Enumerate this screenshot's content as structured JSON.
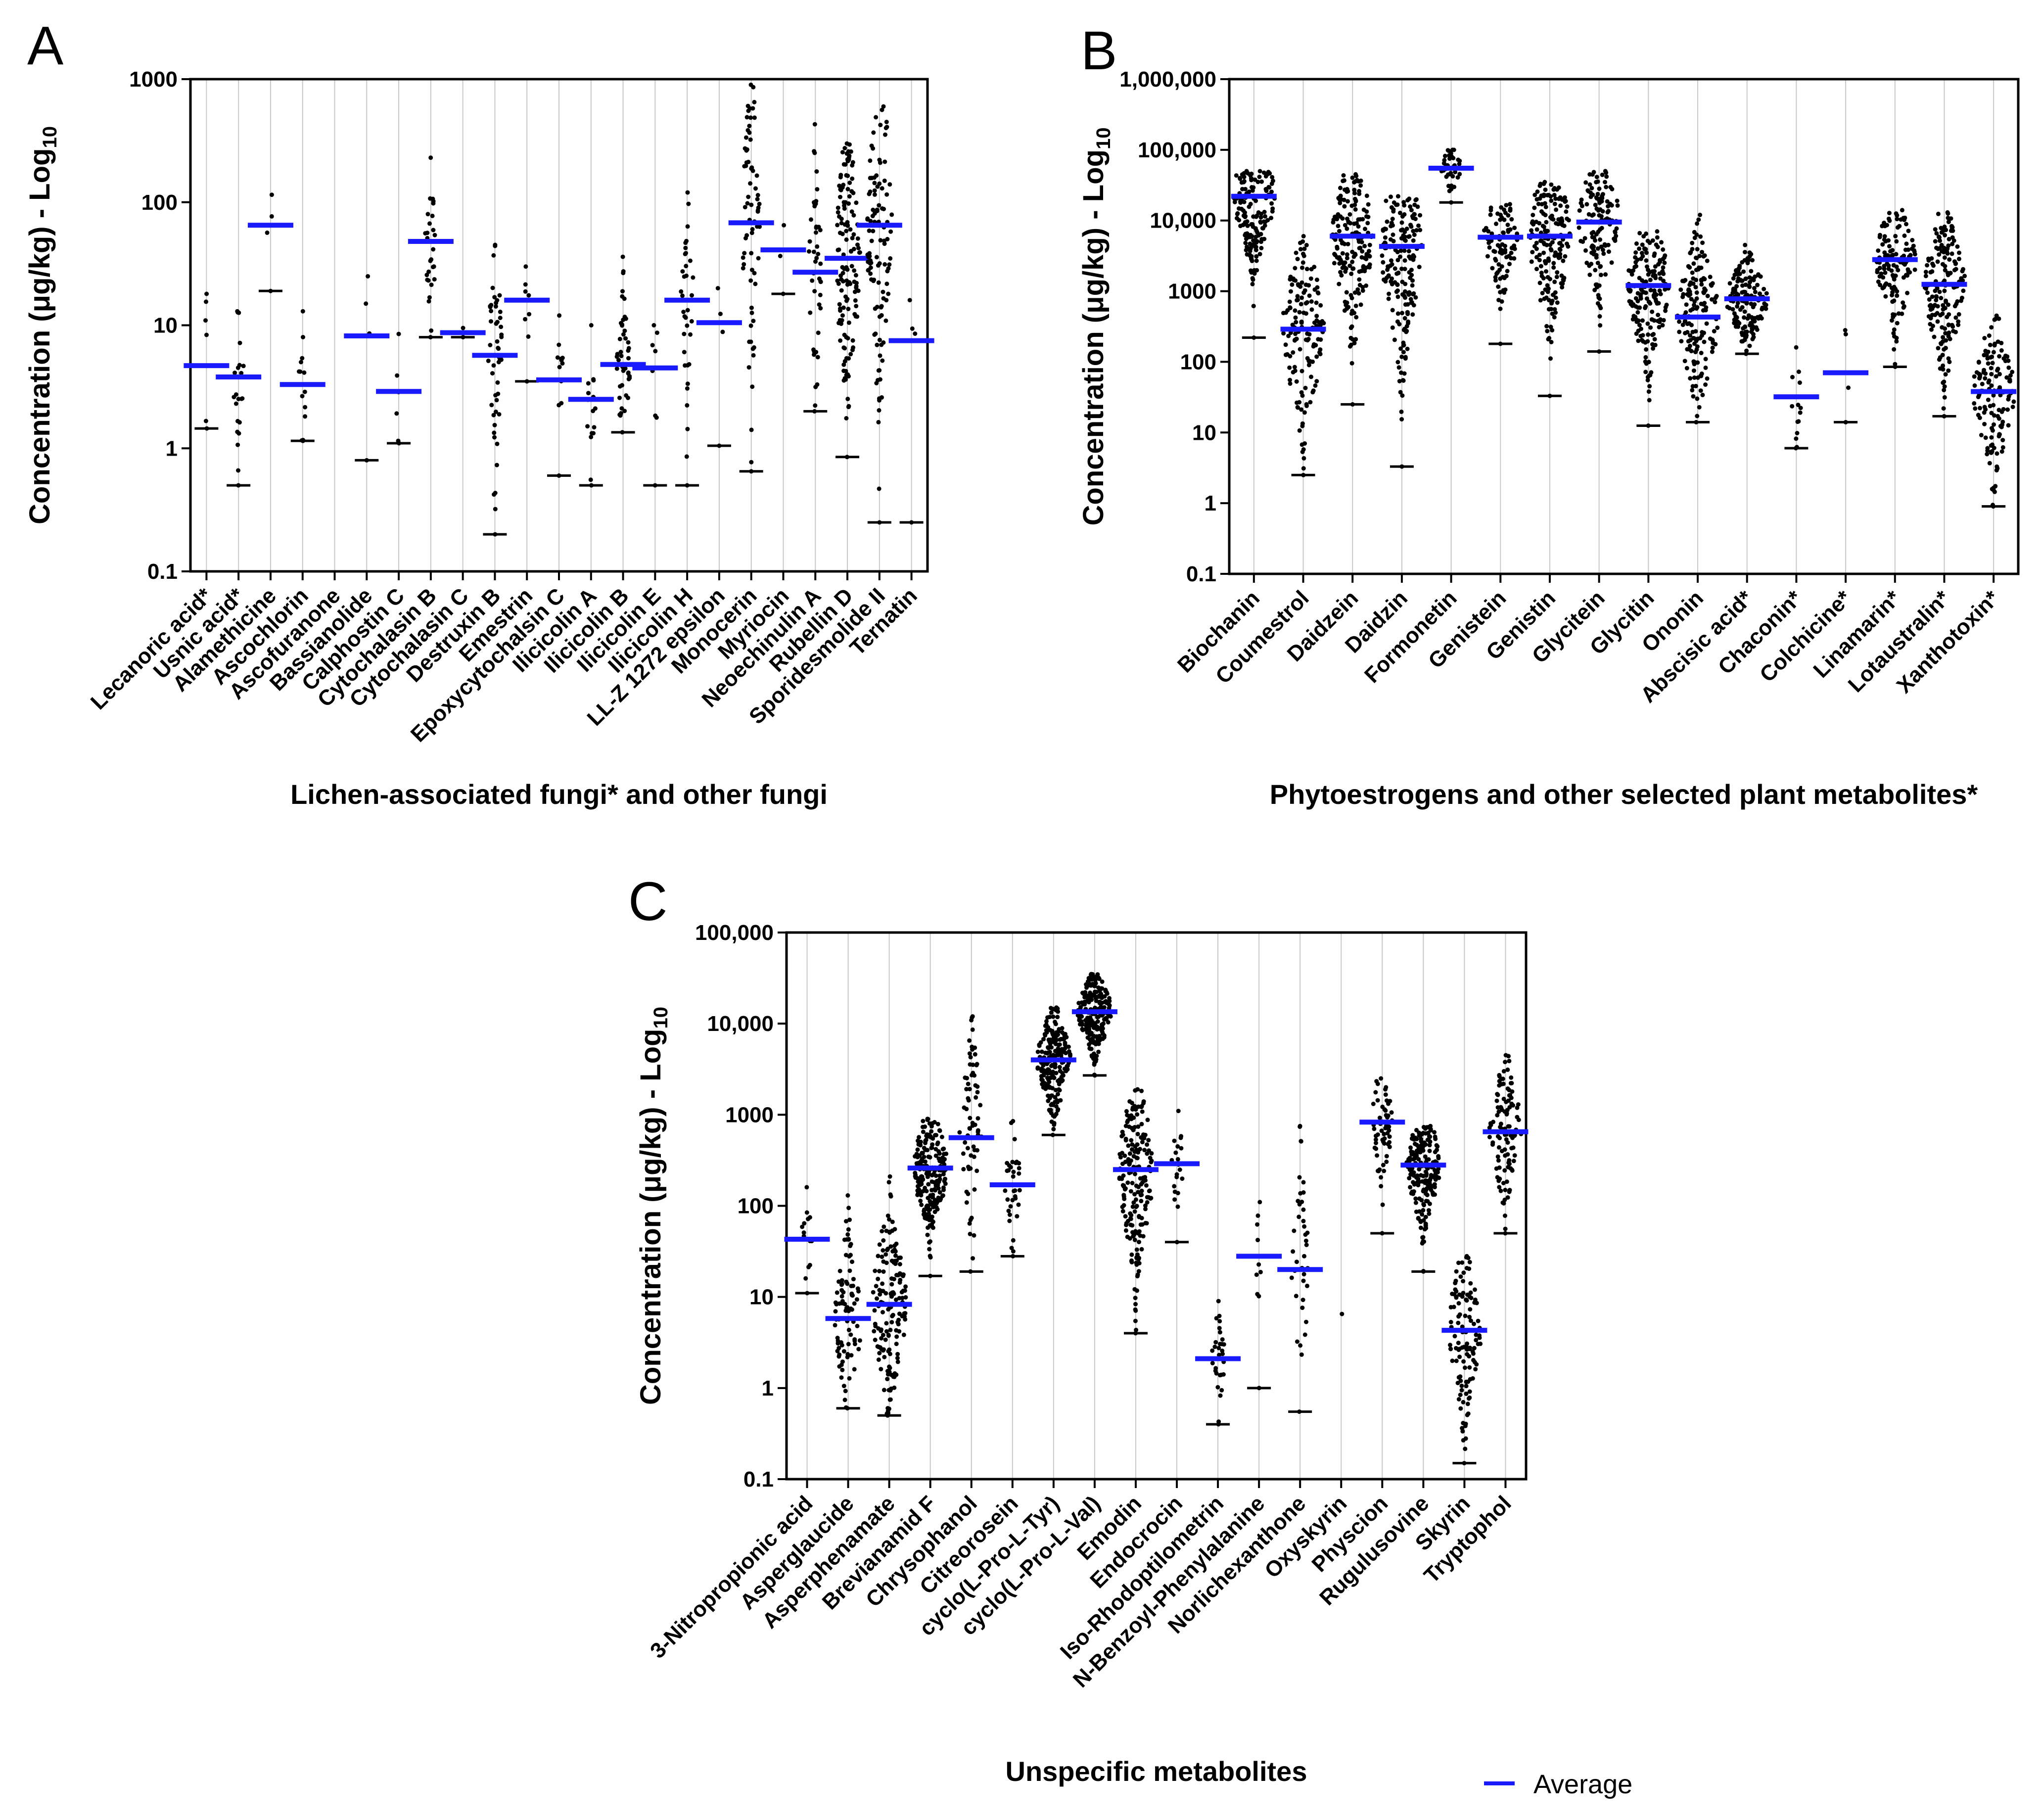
{
  "figure": {
    "legend_label": "Average",
    "colors": {
      "average": "#1a1aff",
      "minimum": "#000000",
      "points": "#000000",
      "grid": "#c8c8c8",
      "axis": "#000000"
    }
  },
  "chart_data": [
    {
      "panel": "A",
      "type": "scatter",
      "y_scale": "log10",
      "ylim": [
        0.1,
        1000
      ],
      "ylabel": "Concentration (μg/kg) - Log",
      "ylabel_sub": "10",
      "ytick_labels": [
        "1000",
        "100",
        "10",
        "1",
        "0.1"
      ],
      "ytick_values": [
        1000,
        100,
        10,
        1,
        0.1
      ],
      "xlabel": "Lichen-associated fungi* and other fungi",
      "categories": [
        {
          "name": "Lecanoric acid*",
          "average": 4.7,
          "min": 1.45,
          "max": 18,
          "n": 6
        },
        {
          "name": "Usnic acid*",
          "average": 3.8,
          "min": 0.5,
          "max": 13,
          "n": 22
        },
        {
          "name": "Alamethicine",
          "average": 65,
          "min": 19,
          "max": 115,
          "n": 4
        },
        {
          "name": "Ascochlorin",
          "average": 3.3,
          "min": 1.15,
          "max": 13,
          "n": 14
        },
        {
          "name": "Ascofuranone",
          "average": null,
          "min": null,
          "max": null,
          "n": 0
        },
        {
          "name": "Bassianolide",
          "average": 8.2,
          "min": 0.8,
          "max": 25,
          "n": 4
        },
        {
          "name": "Calphostin C",
          "average": 2.9,
          "min": 1.1,
          "max": 8.5,
          "n": 6
        },
        {
          "name": "Cytochalasin B",
          "average": 48,
          "min": 8,
          "max": 230,
          "n": 28
        },
        {
          "name": "Cytochalasin C",
          "average": 8.7,
          "min": 8,
          "max": 9.5,
          "n": 2
        },
        {
          "name": "Destruxin B",
          "average": 5.7,
          "min": 0.2,
          "max": 45,
          "n": 50
        },
        {
          "name": "Emestrin",
          "average": 16,
          "min": 3.5,
          "max": 30,
          "n": 8
        },
        {
          "name": "Epoxycytochalsin C",
          "average": 3.6,
          "min": 0.6,
          "max": 12,
          "n": 12
        },
        {
          "name": "Ilicicolin A",
          "average": 2.5,
          "min": 0.5,
          "max": 10,
          "n": 16
        },
        {
          "name": "Ilicicolin B",
          "average": 4.8,
          "min": 1.35,
          "max": 36,
          "n": 45
        },
        {
          "name": "Ilicicolin E",
          "average": 4.5,
          "min": 0.5,
          "max": 10,
          "n": 8
        },
        {
          "name": "Ilicicolin H",
          "average": 16,
          "min": 0.5,
          "max": 120,
          "n": 35
        },
        {
          "name": "LL-Z 1272 epsilon",
          "average": 10.5,
          "min": 1.05,
          "max": 20,
          "n": 4
        },
        {
          "name": "Monocerin",
          "average": 68,
          "min": 0.65,
          "max": 900,
          "n": 70
        },
        {
          "name": "Myriocin",
          "average": 41,
          "min": 18,
          "max": 65,
          "n": 3
        },
        {
          "name": "Neoechinulin A",
          "average": 27,
          "min": 2,
          "max": 430,
          "n": 45
        },
        {
          "name": "Rubellin D",
          "average": 35,
          "min": 0.85,
          "max": 300,
          "n": 140
        },
        {
          "name": "Sporidesmolide II",
          "average": 65,
          "min": 0.25,
          "max": 600,
          "n": 110
        },
        {
          "name": "Ternatin",
          "average": 7.5,
          "min": 0.25,
          "max": 16,
          "n": 4
        }
      ]
    },
    {
      "panel": "B",
      "type": "scatter",
      "y_scale": "log10",
      "ylim": [
        0.1,
        1000000
      ],
      "ylabel": "Concentration (μg/kg) - Log",
      "ylabel_sub": "10",
      "ytick_labels": [
        "1,000,000",
        "100,000",
        "10,000",
        "1000",
        "100",
        "10",
        "1",
        "0.1"
      ],
      "ytick_values": [
        1000000,
        100000,
        10000,
        1000,
        100,
        10,
        1,
        0.1
      ],
      "xlabel": "Phytoestrogens and other selected plant metabolites*",
      "categories": [
        {
          "name": "Biochanin",
          "average": 22000,
          "min": 220,
          "max": 50000,
          "n": 160
        },
        {
          "name": "Coumestrol",
          "average": 290,
          "min": 2.5,
          "max": 6000,
          "n": 150
        },
        {
          "name": "Daidzein",
          "average": 6000,
          "min": 25,
          "max": 45000,
          "n": 180
        },
        {
          "name": "Daidzin",
          "average": 4300,
          "min": 3.3,
          "max": 22000,
          "n": 180
        },
        {
          "name": "Formonetin",
          "average": 55000,
          "min": 18000,
          "max": 100000,
          "n": 40
        },
        {
          "name": "Genistein",
          "average": 5800,
          "min": 180,
          "max": 17000,
          "n": 90
        },
        {
          "name": "Genistin",
          "average": 6000,
          "min": 33,
          "max": 35000,
          "n": 180
        },
        {
          "name": "Glycitein",
          "average": 9500,
          "min": 140,
          "max": 50000,
          "n": 130
        },
        {
          "name": "Glycitin",
          "average": 1200,
          "min": 12.5,
          "max": 7000,
          "n": 170
        },
        {
          "name": "Ononin",
          "average": 430,
          "min": 14,
          "max": 12000,
          "n": 160
        },
        {
          "name": "Abscisic acid*",
          "average": 780,
          "min": 130,
          "max": 4500,
          "n": 150
        },
        {
          "name": "Chaconin*",
          "average": 32,
          "min": 6,
          "max": 160,
          "n": 14
        },
        {
          "name": "Colchicine*",
          "average": 70,
          "min": 14,
          "max": 280,
          "n": 4
        },
        {
          "name": "Linamarin*",
          "average": 2800,
          "min": 85,
          "max": 14000,
          "n": 130
        },
        {
          "name": "Lotaustralin*",
          "average": 1250,
          "min": 17,
          "max": 13000,
          "n": 180
        },
        {
          "name": "Xanthotoxin*",
          "average": 38,
          "min": 0.9,
          "max": 450,
          "n": 140
        }
      ]
    },
    {
      "panel": "C",
      "type": "scatter",
      "y_scale": "log10",
      "ylim": [
        0.1,
        100000
      ],
      "ylabel": "Concentration (μg/kg) - Log",
      "ylabel_sub": "10",
      "ytick_labels": [
        "100,000",
        "10,000",
        "1000",
        "100",
        "10",
        "1",
        "0.1"
      ],
      "ytick_values": [
        100000,
        10000,
        1000,
        100,
        10,
        1,
        0.1
      ],
      "xlabel": "Unspecific metabolites",
      "categories": [
        {
          "name": "3-Nitropropionic acid",
          "average": 43,
          "min": 11,
          "max": 160,
          "n": 14
        },
        {
          "name": "Asperglaucide",
          "average": 5.8,
          "min": 0.6,
          "max": 130,
          "n": 90
        },
        {
          "name": "Asperphenamate",
          "average": 8.3,
          "min": 0.5,
          "max": 210,
          "n": 160
        },
        {
          "name": "Brevianamid F",
          "average": 260,
          "min": 17,
          "max": 900,
          "n": 220
        },
        {
          "name": "Chrysophanol",
          "average": 560,
          "min": 19,
          "max": 12000,
          "n": 70
        },
        {
          "name": "Citreorosein",
          "average": 170,
          "min": 28,
          "max": 850,
          "n": 35
        },
        {
          "name": "cyclo(L-Pro-L-Tyr)",
          "average": 4000,
          "min": 600,
          "max": 15000,
          "n": 220
        },
        {
          "name": "cyclo(L-Pro-L-Val)",
          "average": 13500,
          "min": 2700,
          "max": 35000,
          "n": 230
        },
        {
          "name": "Emodin",
          "average": 250,
          "min": 4,
          "max": 1900,
          "n": 200
        },
        {
          "name": "Endocrocin",
          "average": 290,
          "min": 40,
          "max": 1100,
          "n": 22
        },
        {
          "name": "Iso-Rhodoptilometrin",
          "average": 2.1,
          "min": 0.4,
          "max": 9,
          "n": 30
        },
        {
          "name": "N-Benzoyl-Phenylalanine",
          "average": 28,
          "min": 1,
          "max": 110,
          "n": 10
        },
        {
          "name": "Norlichexanthone",
          "average": 20,
          "min": 0.55,
          "max": 750,
          "n": 40
        },
        {
          "name": "Oxyskyrin",
          "average": null,
          "min": 6.5,
          "max": 6.5,
          "n": 1
        },
        {
          "name": "Physcion",
          "average": 830,
          "min": 50,
          "max": 2500,
          "n": 60
        },
        {
          "name": "Rugulusovine",
          "average": 280,
          "min": 19,
          "max": 750,
          "n": 200
        },
        {
          "name": "Skyrin",
          "average": 4.3,
          "min": 0.15,
          "max": 28,
          "n": 120
        },
        {
          "name": "Tryptophol",
          "average": 650,
          "min": 50,
          "max": 4500,
          "n": 110
        }
      ]
    }
  ]
}
